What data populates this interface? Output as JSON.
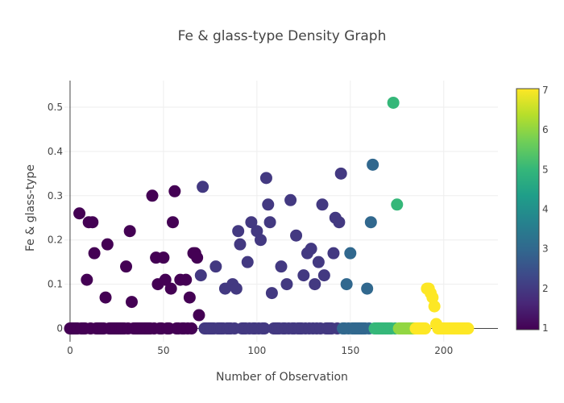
{
  "chart_data": {
    "type": "scatter",
    "title": "Fe & glass-type Density Graph",
    "xlabel": "Number of Observation",
    "ylabel": "Fe & glass-type",
    "xlim": [
      -3,
      229
    ],
    "ylim": [
      -0.03,
      0.56
    ],
    "x_ticks": [
      0,
      50,
      100,
      150,
      200
    ],
    "y_ticks": [
      0,
      0.1,
      0.2,
      0.3,
      0.4,
      0.5
    ],
    "grid": true,
    "colorscale": {
      "name": "Viridis",
      "range": [
        1,
        7
      ],
      "ticks": [
        1,
        2,
        3,
        4,
        5,
        6,
        7
      ],
      "stops": [
        "#440154",
        "#482878",
        "#3e4989",
        "#31688e",
        "#26828e",
        "#1f9e89",
        "#35b779",
        "#6ece58",
        "#b5de2b",
        "#fde725"
      ]
    },
    "marker": {
      "color": "class value (1-7)",
      "stroke": "none"
    },
    "points": [
      {
        "x": 0,
        "y": 0,
        "c": 1
      },
      {
        "x": 1,
        "y": 0,
        "c": 1
      },
      {
        "x": 2,
        "y": 0,
        "c": 1
      },
      {
        "x": 3,
        "y": 0,
        "c": 1
      },
      {
        "x": 4,
        "y": 0,
        "c": 1
      },
      {
        "x": 5,
        "y": 0.26,
        "c": 1
      },
      {
        "x": 6,
        "y": 0,
        "c": 1
      },
      {
        "x": 7,
        "y": 0,
        "c": 1
      },
      {
        "x": 8,
        "y": 0,
        "c": 1
      },
      {
        "x": 9,
        "y": 0.11,
        "c": 1
      },
      {
        "x": 10,
        "y": 0.24,
        "c": 1
      },
      {
        "x": 11,
        "y": 0,
        "c": 1
      },
      {
        "x": 12,
        "y": 0.24,
        "c": 1
      },
      {
        "x": 13,
        "y": 0.17,
        "c": 1
      },
      {
        "x": 14,
        "y": 0,
        "c": 1
      },
      {
        "x": 15,
        "y": 0,
        "c": 1
      },
      {
        "x": 16,
        "y": 0,
        "c": 1
      },
      {
        "x": 17,
        "y": 0,
        "c": 1
      },
      {
        "x": 18,
        "y": 0,
        "c": 1
      },
      {
        "x": 19,
        "y": 0.07,
        "c": 1
      },
      {
        "x": 20,
        "y": 0.19,
        "c": 1
      },
      {
        "x": 21,
        "y": 0,
        "c": 1
      },
      {
        "x": 22,
        "y": 0,
        "c": 1
      },
      {
        "x": 23,
        "y": 0,
        "c": 1
      },
      {
        "x": 24,
        "y": 0,
        "c": 1
      },
      {
        "x": 25,
        "y": 0,
        "c": 1
      },
      {
        "x": 26,
        "y": 0,
        "c": 1
      },
      {
        "x": 27,
        "y": 0,
        "c": 1
      },
      {
        "x": 28,
        "y": 0,
        "c": 1
      },
      {
        "x": 29,
        "y": 0,
        "c": 1
      },
      {
        "x": 30,
        "y": 0.14,
        "c": 1
      },
      {
        "x": 31,
        "y": 0,
        "c": 1
      },
      {
        "x": 32,
        "y": 0.22,
        "c": 1
      },
      {
        "x": 33,
        "y": 0.06,
        "c": 1
      },
      {
        "x": 34,
        "y": 0,
        "c": 1
      },
      {
        "x": 35,
        "y": 0,
        "c": 1
      },
      {
        "x": 36,
        "y": 0,
        "c": 1
      },
      {
        "x": 37,
        "y": 0,
        "c": 1
      },
      {
        "x": 38,
        "y": 0,
        "c": 1
      },
      {
        "x": 39,
        "y": 0,
        "c": 1
      },
      {
        "x": 40,
        "y": 0,
        "c": 1
      },
      {
        "x": 41,
        "y": 0,
        "c": 1
      },
      {
        "x": 42,
        "y": 0,
        "c": 1
      },
      {
        "x": 43,
        "y": 0,
        "c": 1
      },
      {
        "x": 44,
        "y": 0.3,
        "c": 1
      },
      {
        "x": 45,
        "y": 0,
        "c": 1
      },
      {
        "x": 46,
        "y": 0.16,
        "c": 1
      },
      {
        "x": 47,
        "y": 0.1,
        "c": 1
      },
      {
        "x": 48,
        "y": 0,
        "c": 1
      },
      {
        "x": 49,
        "y": 0,
        "c": 1
      },
      {
        "x": 50,
        "y": 0.16,
        "c": 1
      },
      {
        "x": 51,
        "y": 0.11,
        "c": 1
      },
      {
        "x": 52,
        "y": 0,
        "c": 1
      },
      {
        "x": 53,
        "y": 0,
        "c": 1
      },
      {
        "x": 54,
        "y": 0.09,
        "c": 1
      },
      {
        "x": 55,
        "y": 0.24,
        "c": 1
      },
      {
        "x": 56,
        "y": 0.31,
        "c": 1
      },
      {
        "x": 57,
        "y": 0,
        "c": 1
      },
      {
        "x": 58,
        "y": 0,
        "c": 1
      },
      {
        "x": 59,
        "y": 0.11,
        "c": 1
      },
      {
        "x": 60,
        "y": 0,
        "c": 1
      },
      {
        "x": 61,
        "y": 0,
        "c": 1
      },
      {
        "x": 62,
        "y": 0.11,
        "c": 1
      },
      {
        "x": 63,
        "y": 0,
        "c": 1
      },
      {
        "x": 64,
        "y": 0.07,
        "c": 1
      },
      {
        "x": 65,
        "y": 0,
        "c": 1
      },
      {
        "x": 66,
        "y": 0.17,
        "c": 1
      },
      {
        "x": 67,
        "y": 0.17,
        "c": 1
      },
      {
        "x": 68,
        "y": 0.16,
        "c": 1
      },
      {
        "x": 69,
        "y": 0.03,
        "c": 1
      },
      {
        "x": 70,
        "y": 0.12,
        "c": 2
      },
      {
        "x": 71,
        "y": 0.32,
        "c": 2
      },
      {
        "x": 72,
        "y": 0,
        "c": 2
      },
      {
        "x": 73,
        "y": 0,
        "c": 2
      },
      {
        "x": 74,
        "y": 0,
        "c": 2
      },
      {
        "x": 75,
        "y": 0,
        "c": 2
      },
      {
        "x": 76,
        "y": 0,
        "c": 2
      },
      {
        "x": 77,
        "y": 0,
        "c": 2
      },
      {
        "x": 78,
        "y": 0.14,
        "c": 2
      },
      {
        "x": 79,
        "y": 0,
        "c": 2
      },
      {
        "x": 80,
        "y": 0,
        "c": 2
      },
      {
        "x": 81,
        "y": 0,
        "c": 2
      },
      {
        "x": 82,
        "y": 0,
        "c": 2
      },
      {
        "x": 83,
        "y": 0.09,
        "c": 2
      },
      {
        "x": 84,
        "y": 0,
        "c": 2
      },
      {
        "x": 85,
        "y": 0,
        "c": 2
      },
      {
        "x": 86,
        "y": 0,
        "c": 2
      },
      {
        "x": 87,
        "y": 0.1,
        "c": 2
      },
      {
        "x": 88,
        "y": 0,
        "c": 2
      },
      {
        "x": 89,
        "y": 0.09,
        "c": 2
      },
      {
        "x": 90,
        "y": 0.22,
        "c": 2
      },
      {
        "x": 91,
        "y": 0.19,
        "c": 2
      },
      {
        "x": 92,
        "y": 0,
        "c": 2
      },
      {
        "x": 93,
        "y": 0,
        "c": 2
      },
      {
        "x": 94,
        "y": 0,
        "c": 2
      },
      {
        "x": 95,
        "y": 0.15,
        "c": 2
      },
      {
        "x": 96,
        "y": 0,
        "c": 2
      },
      {
        "x": 97,
        "y": 0.24,
        "c": 2
      },
      {
        "x": 98,
        "y": 0,
        "c": 2
      },
      {
        "x": 99,
        "y": 0,
        "c": 2
      },
      {
        "x": 100,
        "y": 0.22,
        "c": 2
      },
      {
        "x": 101,
        "y": 0,
        "c": 2
      },
      {
        "x": 102,
        "y": 0.2,
        "c": 2
      },
      {
        "x": 103,
        "y": 0,
        "c": 2
      },
      {
        "x": 104,
        "y": 0,
        "c": 2
      },
      {
        "x": 105,
        "y": 0.34,
        "c": 2
      },
      {
        "x": 106,
        "y": 0.28,
        "c": 2
      },
      {
        "x": 107,
        "y": 0.24,
        "c": 2
      },
      {
        "x": 108,
        "y": 0.08,
        "c": 2
      },
      {
        "x": 109,
        "y": 0,
        "c": 2
      },
      {
        "x": 110,
        "y": 0,
        "c": 2
      },
      {
        "x": 111,
        "y": 0,
        "c": 2
      },
      {
        "x": 112,
        "y": 0,
        "c": 2
      },
      {
        "x": 113,
        "y": 0.14,
        "c": 2
      },
      {
        "x": 114,
        "y": 0,
        "c": 2
      },
      {
        "x": 115,
        "y": 0,
        "c": 2
      },
      {
        "x": 116,
        "y": 0.1,
        "c": 2
      },
      {
        "x": 117,
        "y": 0,
        "c": 2
      },
      {
        "x": 118,
        "y": 0.29,
        "c": 2
      },
      {
        "x": 119,
        "y": 0,
        "c": 2
      },
      {
        "x": 120,
        "y": 0,
        "c": 2
      },
      {
        "x": 121,
        "y": 0.21,
        "c": 2
      },
      {
        "x": 122,
        "y": 0,
        "c": 2
      },
      {
        "x": 123,
        "y": 0,
        "c": 2
      },
      {
        "x": 124,
        "y": 0,
        "c": 2
      },
      {
        "x": 125,
        "y": 0.12,
        "c": 2
      },
      {
        "x": 126,
        "y": 0,
        "c": 2
      },
      {
        "x": 127,
        "y": 0.17,
        "c": 2
      },
      {
        "x": 128,
        "y": 0,
        "c": 2
      },
      {
        "x": 129,
        "y": 0.18,
        "c": 2
      },
      {
        "x": 130,
        "y": 0,
        "c": 2
      },
      {
        "x": 131,
        "y": 0.1,
        "c": 2
      },
      {
        "x": 132,
        "y": 0,
        "c": 2
      },
      {
        "x": 133,
        "y": 0.15,
        "c": 2
      },
      {
        "x": 134,
        "y": 0,
        "c": 2
      },
      {
        "x": 135,
        "y": 0.28,
        "c": 2
      },
      {
        "x": 136,
        "y": 0.12,
        "c": 2
      },
      {
        "x": 137,
        "y": 0,
        "c": 2
      },
      {
        "x": 138,
        "y": 0,
        "c": 2
      },
      {
        "x": 139,
        "y": 0,
        "c": 2
      },
      {
        "x": 140,
        "y": 0,
        "c": 2
      },
      {
        "x": 141,
        "y": 0.17,
        "c": 2
      },
      {
        "x": 142,
        "y": 0.25,
        "c": 2
      },
      {
        "x": 143,
        "y": 0,
        "c": 2
      },
      {
        "x": 144,
        "y": 0.24,
        "c": 2
      },
      {
        "x": 145,
        "y": 0.35,
        "c": 2
      },
      {
        "x": 146,
        "y": 0,
        "c": 3
      },
      {
        "x": 147,
        "y": 0,
        "c": 3
      },
      {
        "x": 148,
        "y": 0.1,
        "c": 3
      },
      {
        "x": 149,
        "y": 0,
        "c": 3
      },
      {
        "x": 150,
        "y": 0.17,
        "c": 3
      },
      {
        "x": 151,
        "y": 0,
        "c": 3
      },
      {
        "x": 152,
        "y": 0,
        "c": 3
      },
      {
        "x": 153,
        "y": 0,
        "c": 3
      },
      {
        "x": 154,
        "y": 0,
        "c": 3
      },
      {
        "x": 155,
        "y": 0,
        "c": 3
      },
      {
        "x": 156,
        "y": 0,
        "c": 3
      },
      {
        "x": 157,
        "y": 0,
        "c": 3
      },
      {
        "x": 158,
        "y": 0,
        "c": 3
      },
      {
        "x": 159,
        "y": 0.09,
        "c": 3
      },
      {
        "x": 160,
        "y": 0,
        "c": 3
      },
      {
        "x": 161,
        "y": 0.24,
        "c": 3
      },
      {
        "x": 162,
        "y": 0.37,
        "c": 3
      },
      {
        "x": 163,
        "y": 0,
        "c": 5
      },
      {
        "x": 164,
        "y": 0,
        "c": 5
      },
      {
        "x": 165,
        "y": 0,
        "c": 5
      },
      {
        "x": 166,
        "y": 0,
        "c": 5
      },
      {
        "x": 167,
        "y": 0,
        "c": 5
      },
      {
        "x": 168,
        "y": 0,
        "c": 5
      },
      {
        "x": 169,
        "y": 0,
        "c": 5
      },
      {
        "x": 170,
        "y": 0,
        "c": 5
      },
      {
        "x": 171,
        "y": 0,
        "c": 5
      },
      {
        "x": 172,
        "y": 0,
        "c": 5
      },
      {
        "x": 173,
        "y": 0.51,
        "c": 5
      },
      {
        "x": 174,
        "y": 0,
        "c": 5
      },
      {
        "x": 175,
        "y": 0.28,
        "c": 5
      },
      {
        "x": 176,
        "y": 0,
        "c": 6
      },
      {
        "x": 177,
        "y": 0,
        "c": 6
      },
      {
        "x": 178,
        "y": 0,
        "c": 6
      },
      {
        "x": 179,
        "y": 0,
        "c": 6
      },
      {
        "x": 180,
        "y": 0,
        "c": 6
      },
      {
        "x": 181,
        "y": 0,
        "c": 6
      },
      {
        "x": 182,
        "y": 0,
        "c": 6
      },
      {
        "x": 183,
        "y": 0,
        "c": 6
      },
      {
        "x": 184,
        "y": 0,
        "c": 6
      },
      {
        "x": 185,
        "y": 0,
        "c": 7
      },
      {
        "x": 186,
        "y": 0,
        "c": 7
      },
      {
        "x": 187,
        "y": 0,
        "c": 7
      },
      {
        "x": 188,
        "y": 0,
        "c": 7
      },
      {
        "x": 189,
        "y": 0,
        "c": 7
      },
      {
        "x": 190,
        "y": 0,
        "c": 7
      },
      {
        "x": 191,
        "y": 0.09,
        "c": 7
      },
      {
        "x": 192,
        "y": 0.09,
        "c": 7
      },
      {
        "x": 193,
        "y": 0.08,
        "c": 7
      },
      {
        "x": 194,
        "y": 0.07,
        "c": 7
      },
      {
        "x": 195,
        "y": 0.05,
        "c": 7
      },
      {
        "x": 196,
        "y": 0.01,
        "c": 7
      },
      {
        "x": 197,
        "y": 0,
        "c": 7
      },
      {
        "x": 198,
        "y": 0,
        "c": 7
      },
      {
        "x": 199,
        "y": 0,
        "c": 7
      },
      {
        "x": 200,
        "y": 0,
        "c": 7
      },
      {
        "x": 201,
        "y": 0,
        "c": 7
      },
      {
        "x": 202,
        "y": 0,
        "c": 7
      },
      {
        "x": 203,
        "y": 0,
        "c": 7
      },
      {
        "x": 204,
        "y": 0,
        "c": 7
      },
      {
        "x": 205,
        "y": 0,
        "c": 7
      },
      {
        "x": 206,
        "y": 0,
        "c": 7
      },
      {
        "x": 207,
        "y": 0,
        "c": 7
      },
      {
        "x": 208,
        "y": 0,
        "c": 7
      },
      {
        "x": 209,
        "y": 0,
        "c": 7
      },
      {
        "x": 210,
        "y": 0,
        "c": 7
      },
      {
        "x": 211,
        "y": 0,
        "c": 7
      },
      {
        "x": 212,
        "y": 0,
        "c": 7
      },
      {
        "x": 213,
        "y": 0,
        "c": 7
      }
    ]
  }
}
